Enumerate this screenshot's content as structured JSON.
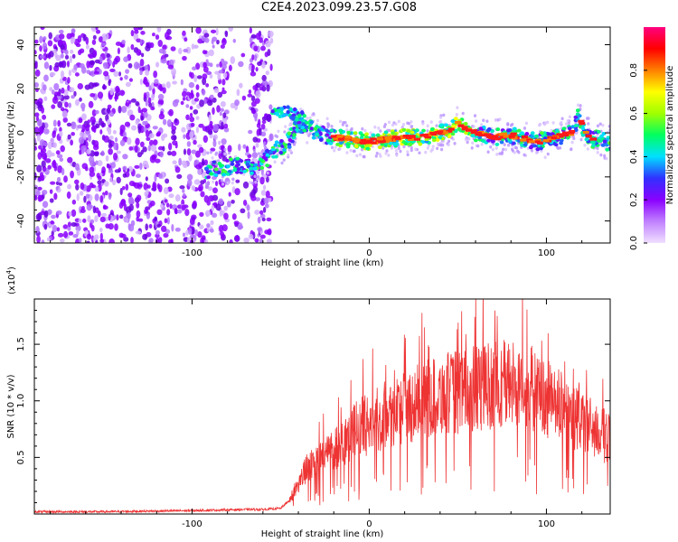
{
  "title": "C2E4.2023.099.23.57.G08",
  "chart_data": [
    {
      "type": "heatmap",
      "xlabel": "Height of straight line (km)",
      "ylabel": "Frequency (Hz)",
      "xlim": [
        -189,
        136
      ],
      "ylim": [
        -50,
        48
      ],
      "x_ticks": [
        -100,
        0,
        100
      ],
      "y_ticks": [
        -40,
        -20,
        0,
        20,
        40
      ],
      "colorbar": {
        "label": "Normalized spectral amplitude",
        "range": [
          0,
          1
        ],
        "ticks": [
          0.0,
          0.2,
          0.4,
          0.6,
          0.8
        ],
        "colormap": [
          "#f0e0ff",
          "#c080ff",
          "#8a00ff",
          "#3030ff",
          "#00e0ff",
          "#00ff60",
          "#a0ff00",
          "#ffff00",
          "#ff8000",
          "#ff0000",
          "#ff0080"
        ]
      },
      "ridge": {
        "x": [
          -92,
          -85,
          -75,
          -65,
          -58,
          -55,
          -50,
          -45,
          -40,
          -35,
          -30,
          -25,
          -20,
          -10,
          0,
          10,
          20,
          30,
          40,
          45,
          50,
          55,
          60,
          70,
          80,
          90,
          95,
          100,
          110,
          115,
          118,
          122,
          126,
          130,
          136
        ],
        "y": [
          -17,
          -16,
          -15,
          -15,
          -12,
          -8,
          -7,
          -3,
          4,
          3,
          0,
          -1,
          -2,
          -3,
          -4,
          -3,
          -2,
          -2,
          0,
          1,
          4,
          2,
          0,
          -2,
          -1,
          -3,
          -4,
          -3,
          -1,
          0,
          8,
          0,
          -3,
          -2,
          -5
        ],
        "upper_branch": {
          "x": [
            -55,
            -50,
            -45,
            -40,
            -36
          ],
          "y": [
            8,
            10,
            9,
            8,
            6
          ]
        }
      },
      "noise_region_x": [
        -189,
        -55
      ]
    },
    {
      "type": "line",
      "xlabel": "Height of straight line (km)",
      "ylabel": "SNR (10 * v/v)",
      "y_scale_label": "(x10",
      "y_scale_exp": "4",
      "y_scale_close": ")",
      "xlim": [
        -189,
        136
      ],
      "ylim": [
        0,
        1.9
      ],
      "x_ticks": [
        -100,
        0,
        100
      ],
      "y_ticks": [
        0.5,
        1.0,
        1.5
      ],
      "series": [
        {
          "color": "#ee3333",
          "envelope": {
            "x": [
              -189,
              -150,
              -100,
              -70,
              -60,
              -50,
              -45,
              -40,
              -35,
              -30,
              -25,
              -20,
              -10,
              0,
              10,
              20,
              30,
              40,
              50,
              60,
              70,
              80,
              90,
              100,
              110,
              120,
              130,
              136
            ],
            "y": [
              0.02,
              0.02,
              0.03,
              0.04,
              0.04,
              0.05,
              0.12,
              0.28,
              0.4,
              0.45,
              0.52,
              0.58,
              0.72,
              0.8,
              0.88,
              0.95,
              1.0,
              1.05,
              1.08,
              1.1,
              1.15,
              1.15,
              1.12,
              1.02,
              0.92,
              0.82,
              0.72,
              0.65
            ]
          }
        }
      ]
    }
  ]
}
